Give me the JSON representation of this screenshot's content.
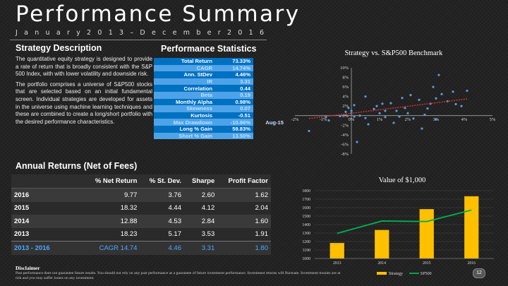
{
  "title": "Performance Summary",
  "date_range": [
    "J",
    "a",
    "n",
    "u",
    "a",
    "r",
    "y",
    "2",
    "0",
    "1",
    "3",
    "–",
    "D",
    "e",
    "c",
    "e",
    "m",
    "b",
    "e",
    "r",
    "2",
    "0",
    "1",
    "6"
  ],
  "strategy": {
    "heading": "Strategy Description",
    "paragraphs": [
      "The quantitative equity strategy is designed to provide a rate of return that is broadly consistent with the S&P 500 Index, with with lower volatility and downside risk.",
      "The portfolio comprises a universe of S&P500 stocks that are selected based on an initial fundamental screen. Individual strategies are developed for assets in the universe using machine learning techniques and these are combined to create a long/short portfolio with the desired performance characteristics."
    ]
  },
  "stats": {
    "heading": "Performance Statistics",
    "rows": [
      {
        "label": "Total Return",
        "value": "73.33%",
        "extra": ""
      },
      {
        "label": "CAGR",
        "value": "14.74%",
        "extra": ""
      },
      {
        "label": "Ann. StDev",
        "value": "4.46%",
        "extra": ""
      },
      {
        "label": "IR",
        "value": "3.31",
        "extra": ""
      },
      {
        "label": "Correlation",
        "value": "0.44",
        "extra": ""
      },
      {
        "label": "Beta",
        "value": "0.19",
        "extra": ""
      },
      {
        "label": "Monthly Alpha",
        "value": "0.98%",
        "extra": ""
      },
      {
        "label": "Skewness",
        "value": "0.07",
        "extra": ""
      },
      {
        "label": "Kurtosis",
        "value": "-0.51",
        "extra": ""
      },
      {
        "label": "Max Drawdown",
        "value": "-10.96%",
        "extra": "Aug-15"
      },
      {
        "label": "Long % Gain",
        "value": "59.83%",
        "extra": ""
      },
      {
        "label": "Short % Gain",
        "value": "13.50%",
        "extra": ""
      }
    ]
  },
  "returns": {
    "heading": "Annual Returns (Net of Fees)",
    "columns": [
      "",
      "% Net Return",
      "% St. Dev.",
      "Sharpe",
      "Profit Factor"
    ],
    "rows": [
      [
        "2016",
        "9.77",
        "3.76",
        "2.60",
        "1.62"
      ],
      [
        "2015",
        "18.32",
        "4.44",
        "4.12",
        "2.04"
      ],
      [
        "2014",
        "12.88",
        "4.53",
        "2.84",
        "1.60"
      ],
      [
        "2013",
        "18.23",
        "5.17",
        "3.53",
        "1.91"
      ]
    ],
    "total": [
      "2013 - 2016",
      "CAGR 14.74",
      "4.46",
      "3.31",
      "1.80"
    ]
  },
  "chart_data": [
    {
      "type": "scatter",
      "title": "Strategy vs. S&P500 Benchmark",
      "xlim": [
        -2,
        5
      ],
      "ylim": [
        -8,
        10
      ],
      "xticks": [
        "-2%",
        "-1%",
        "0%",
        "1%",
        "2%",
        "3%",
        "4%",
        "5%"
      ],
      "yticks": [
        "-8%",
        "-6%",
        "-4%",
        "-2%",
        "0%",
        "2%",
        "4%",
        "6%",
        "8%",
        "10%"
      ],
      "trendline": {
        "x": [
          -1.5,
          4.1
        ],
        "y": [
          -0.6,
          3.5
        ]
      },
      "points": [
        [
          -1.5,
          -3.2
        ],
        [
          -0.9,
          -0.3
        ],
        [
          -0.8,
          -1.0
        ],
        [
          -0.4,
          -0.1
        ],
        [
          -0.2,
          0.8
        ],
        [
          -0.1,
          1.6
        ],
        [
          0.0,
          1.0
        ],
        [
          0.0,
          0.5
        ],
        [
          0.1,
          -0.2
        ],
        [
          0.1,
          2.2
        ],
        [
          0.2,
          -5.5
        ],
        [
          0.3,
          0.0
        ],
        [
          0.5,
          4.0
        ],
        [
          0.5,
          -0.5
        ],
        [
          0.6,
          -1.8
        ],
        [
          0.8,
          1.4
        ],
        [
          0.9,
          2.0
        ],
        [
          1.0,
          0.5
        ],
        [
          1.1,
          2.5
        ],
        [
          1.2,
          1.0
        ],
        [
          1.2,
          -0.3
        ],
        [
          1.4,
          2.6
        ],
        [
          1.5,
          -1.5
        ],
        [
          1.6,
          1.0
        ],
        [
          1.7,
          -0.2
        ],
        [
          1.8,
          3.7
        ],
        [
          1.9,
          1.6
        ],
        [
          2.0,
          0.5
        ],
        [
          2.1,
          4.3
        ],
        [
          2.2,
          -0.6
        ],
        [
          2.4,
          3.3
        ],
        [
          2.5,
          -2.7
        ],
        [
          2.6,
          0.2
        ],
        [
          2.7,
          1.5
        ],
        [
          2.8,
          2.5
        ],
        [
          3.0,
          3.6
        ],
        [
          3.0,
          -0.8
        ],
        [
          3.2,
          4.5
        ],
        [
          3.4,
          3.0
        ],
        [
          3.6,
          5.0
        ],
        [
          3.7,
          2.4
        ],
        [
          3.9,
          2.0
        ],
        [
          4.1,
          5.2
        ],
        [
          3.1,
          8.5
        ],
        [
          2.9,
          6.0
        ]
      ]
    },
    {
      "type": "bar",
      "title": "Value of $1,000",
      "categories": [
        "2013",
        "2014",
        "2015",
        "2016"
      ],
      "series": [
        {
          "name": "Strategy",
          "values": [
            1182,
            1335,
            1581,
            1733
          ]
        },
        {
          "name": "SP500",
          "values": [
            1296,
            1442,
            1436,
            1571
          ]
        }
      ],
      "ylim": [
        1000,
        1800
      ],
      "yticks": [
        "1000",
        "1100",
        "1200",
        "1300",
        "1400",
        "1500",
        "1600",
        "1700",
        "1800"
      ],
      "colors": {
        "Strategy": "#ffc000",
        "SP500": "#00b050"
      }
    }
  ],
  "disclaimer": {
    "title": "Disclaimer",
    "text": "Past performance does not guarantee future results. You should not rely on any past performance as a guarantee of future investment performance. Investment returns will fluctuate. Investment monies are at risk and you may suffer losses on any investment."
  },
  "page_number": "12"
}
